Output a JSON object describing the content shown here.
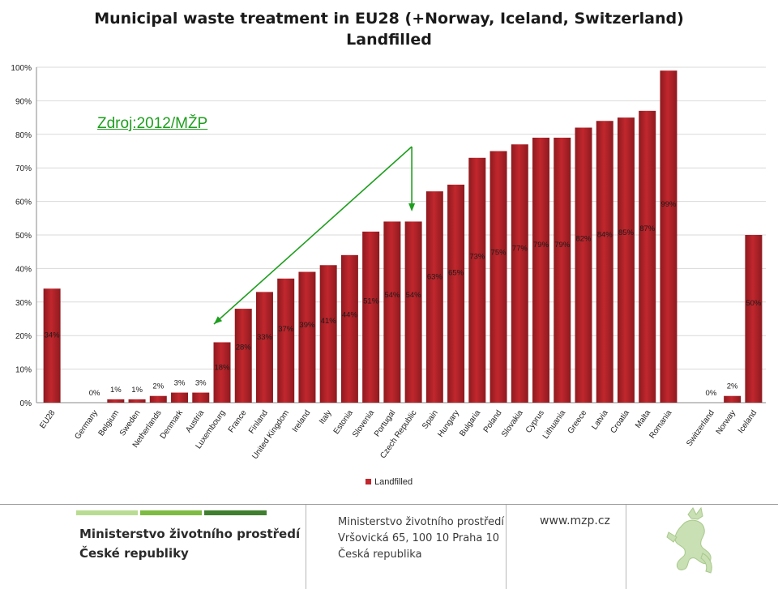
{
  "title": {
    "line1": "Municipal waste treatment in EU28 (+Norway, Iceland, Switzerland)",
    "line2": "Landfilled"
  },
  "source_note": "Zdroj:2012/MŽP",
  "colors": {
    "bar": "#c1272d",
    "bar_dark": "#8e1a1f",
    "arrow": "#1e9e1e",
    "grid": "#d9d9d9",
    "stripe_light": "#b9dc93",
    "stripe_mid": "#7dbb42",
    "stripe_dark": "#3f7f2f"
  },
  "chart_data": {
    "type": "bar",
    "ylim": [
      0,
      100
    ],
    "y_ticks": [
      "0%",
      "10%",
      "20%",
      "30%",
      "40%",
      "50%",
      "60%",
      "70%",
      "80%",
      "90%",
      "100%"
    ],
    "grid": true,
    "legend_position": "bottom",
    "series": [
      {
        "name": "Landfilled"
      }
    ],
    "groups": [
      {
        "categories": [
          "EU28"
        ],
        "values": [
          34
        ],
        "labels": [
          "34%"
        ]
      },
      {
        "categories": [
          "Germany",
          "Belgium",
          "Sweden",
          "Netherlands",
          "Denmark",
          "Austria",
          "Luxembourg",
          "France",
          "Finland",
          "United Kingdom",
          "Ireland",
          "Italy",
          "Estonia",
          "Slovenia",
          "Portugal",
          "Czech Republic",
          "Spain",
          "Hungary",
          "Bulgaria",
          "Poland",
          "Slovakia",
          "Cyprus",
          "Lithuania",
          "Greece",
          "Latvia",
          "Croatia",
          "Malta",
          "Romania"
        ],
        "values": [
          0,
          1,
          1,
          2,
          3,
          3,
          18,
          28,
          33,
          37,
          39,
          41,
          44,
          51,
          54,
          54,
          63,
          65,
          73,
          75,
          77,
          79,
          79,
          82,
          84,
          85,
          87,
          99
        ],
        "labels": [
          "0%",
          "1%",
          "1%",
          "2%",
          "3%",
          "3%",
          "18%",
          "28%",
          "33%",
          "37%",
          "39%",
          "41%",
          "44%",
          "51%",
          "54%",
          "54%",
          "63%",
          "65%",
          "73%",
          "75%",
          "77%",
          "79%",
          "79%",
          "82%",
          "84%",
          "85%",
          "87%",
          "99%"
        ]
      },
      {
        "categories": [
          "Switzerland",
          "Norway",
          "Iceland"
        ],
        "values": [
          0,
          2,
          50
        ],
        "labels": [
          "0%",
          "2%",
          "50%"
        ]
      }
    ]
  },
  "footer": {
    "ministry_line1": "Ministerstvo životního prostředí",
    "ministry_line2": "České republiky",
    "address_line1": "Ministerstvo životního prostředí",
    "address_line2": "Vršovická 65, 100 10  Praha 10",
    "address_line3": "Česká republika",
    "website": "www.mzp.cz"
  }
}
